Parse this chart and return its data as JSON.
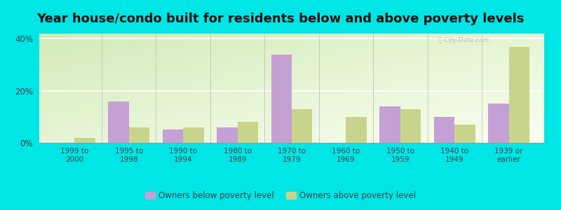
{
  "title": "Year house/condo built for residents below and above poverty levels",
  "categories": [
    "1999 to\n2000",
    "1995 to\n1998",
    "1990 to\n1994",
    "1980 to\n1989",
    "1970 to\n1979",
    "1960 to\n1969",
    "1950 to\n1959",
    "1940 to\n1949",
    "1939 or\nearlier"
  ],
  "below_poverty": [
    0.0,
    16.0,
    5.0,
    6.0,
    34.0,
    0.0,
    14.0,
    10.0,
    15.0
  ],
  "above_poverty": [
    2.0,
    6.0,
    6.0,
    8.0,
    13.0,
    10.0,
    13.0,
    7.0,
    37.0
  ],
  "below_color": "#c4a0d4",
  "above_color": "#c8d48c",
  "background_outer": "#00e5e5",
  "ylim": [
    0,
    42
  ],
  "yticks": [
    0,
    20,
    40
  ],
  "ytick_labels": [
    "0%",
    "20%",
    "40%"
  ],
  "legend_below": "Owners below poverty level",
  "legend_above": "Owners above poverty level",
  "title_fontsize": 13,
  "bar_width": 0.38,
  "gradient_top_left": "#c8e8b0",
  "gradient_bottom_right": "#f8fff0"
}
